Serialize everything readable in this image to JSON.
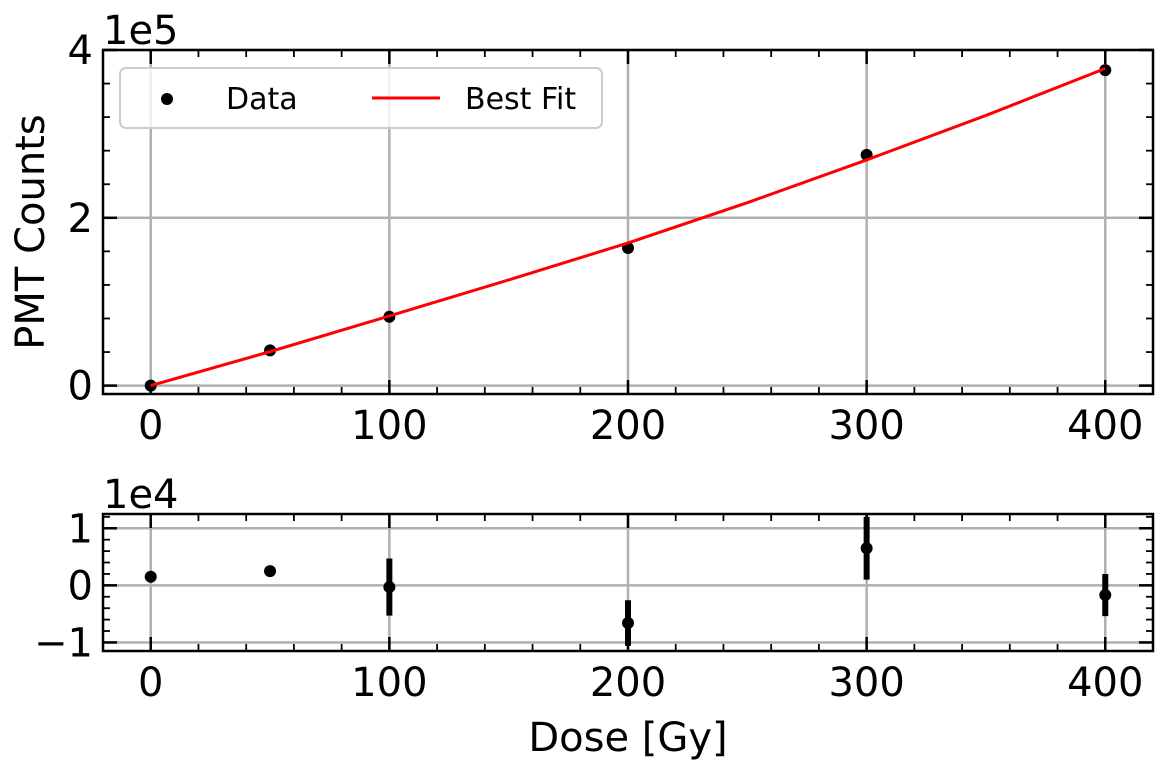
{
  "chart_data": [
    {
      "type": "scatter",
      "panel": "top",
      "offset_text": "1e5",
      "xlabel": "",
      "ylabel": "PMT Counts",
      "xlim": [
        -20,
        420
      ],
      "ylim": [
        -0.1,
        4.0
      ],
      "x_ticks": [
        0,
        100,
        200,
        300,
        400
      ],
      "x_tick_labels": [
        "0",
        "100",
        "200",
        "300",
        "400"
      ],
      "y_ticks": [
        0,
        2,
        4
      ],
      "y_tick_labels": [
        "0",
        "2",
        "4"
      ],
      "grid": true,
      "legend_position": "top-left",
      "series": [
        {
          "name": "Data",
          "kind": "scatter",
          "color": "#000000",
          "x": [
            0,
            50,
            100,
            200,
            300,
            400
          ],
          "y": [
            0.0,
            0.42,
            0.82,
            1.64,
            2.75,
            3.76
          ]
        },
        {
          "name": "Best Fit",
          "kind": "line",
          "color": "#ff0000",
          "x": [
            0,
            50,
            100,
            150,
            200,
            250,
            300,
            350,
            400
          ],
          "y": [
            0.0,
            0.405,
            0.83,
            1.26,
            1.7,
            2.18,
            2.69,
            3.22,
            3.78
          ]
        }
      ]
    },
    {
      "type": "scatter",
      "panel": "bottom",
      "offset_text": "1e4",
      "xlabel": "Dose [Gy]",
      "ylabel": "",
      "xlim": [
        -20,
        420
      ],
      "ylim": [
        -1.15,
        1.25
      ],
      "x_ticks": [
        0,
        100,
        200,
        300,
        400
      ],
      "x_tick_labels": [
        "0",
        "100",
        "200",
        "300",
        "400"
      ],
      "y_ticks": [
        -1,
        0,
        1
      ],
      "y_tick_labels": [
        "−1",
        "0",
        "1"
      ],
      "grid": true,
      "series": [
        {
          "name": "",
          "kind": "errorbar",
          "color": "#000000",
          "x": [
            0,
            50,
            100,
            200,
            300,
            400
          ],
          "y": [
            0.15,
            0.25,
            -0.03,
            -0.66,
            0.65,
            -0.17
          ],
          "yerr": [
            0.0,
            0.0,
            0.5,
            0.4,
            0.55,
            0.37
          ]
        }
      ]
    }
  ]
}
